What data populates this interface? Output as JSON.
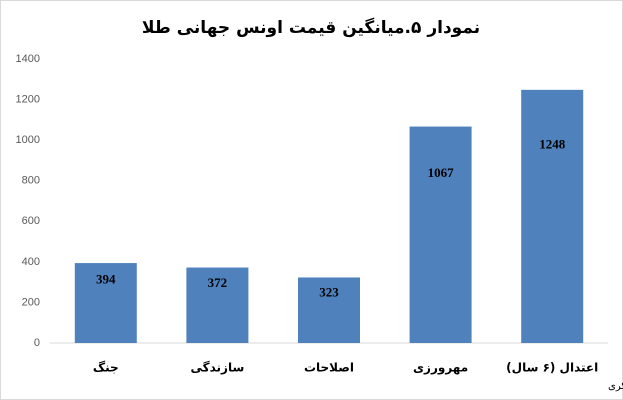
{
  "chart_data": {
    "type": "bar",
    "title": "نمودار ۵.میانگین قیمت اونس جهانی طلا",
    "categories": [
      "جنگ",
      "سازندگی",
      "اصلاحات",
      "مهرورزی",
      "اعتدال (۶ سال)"
    ],
    "values": [
      394,
      372,
      323,
      1067,
      1248
    ],
    "color": "#4f81bd",
    "ylim": [
      0,
      1400
    ],
    "yticks": [
      0,
      200,
      400,
      600,
      800,
      1000,
      1200,
      1400
    ],
    "grid": false,
    "annotation": "تحلیل و استنتاج حامد ذاکری"
  }
}
